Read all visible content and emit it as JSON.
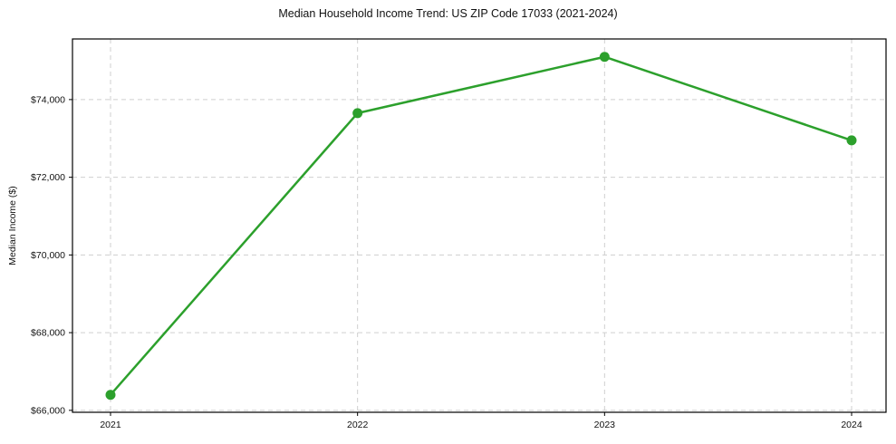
{
  "chart_data": {
    "type": "line",
    "title": "Median Household Income Trend: US ZIP Code 17033 (2021-2024)",
    "xlabel": "",
    "ylabel": "Median Income ($)",
    "x": [
      2021,
      2022,
      2023,
      2024
    ],
    "xtick_labels": [
      "2021",
      "2022",
      "2023",
      "2024"
    ],
    "series": [
      {
        "name": "Median Household Income",
        "values": [
          66400,
          73650,
          75100,
          72950
        ]
      }
    ],
    "ytick_values": [
      66000,
      68000,
      70000,
      72000,
      74000
    ],
    "ytick_labels": [
      "$66,000",
      "$68,000",
      "$70,000",
      "$72,000",
      "$74,000"
    ],
    "ylim": [
      65950,
      75560
    ],
    "grid": "dashed",
    "legend": "none",
    "colors": {
      "line": "#2ca02c",
      "marker": "#2ca02c",
      "grid": "#cfcfcf",
      "spine": "#000000",
      "text": "#111111",
      "background": "#ffffff"
    }
  }
}
